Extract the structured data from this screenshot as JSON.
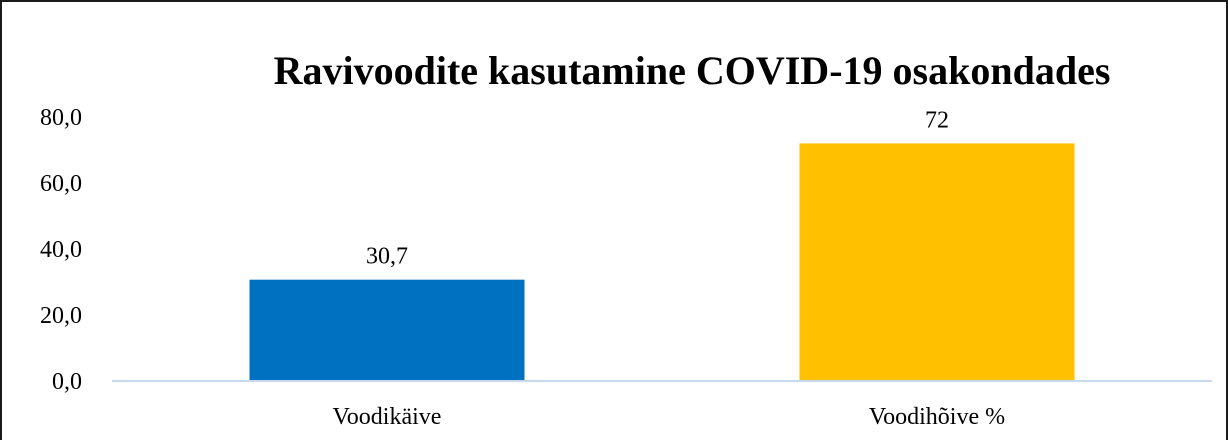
{
  "chart_data": {
    "type": "bar",
    "title": "Ravivoodite kasutamine  COVID-19 osakondades",
    "categories": [
      "Voodikäive",
      "Voodihõive %"
    ],
    "values": [
      30.7,
      72
    ],
    "data_labels": [
      "30,7",
      "72"
    ],
    "bar_colors": [
      "#0070C0",
      "#FFC000"
    ],
    "y_ticks": [
      0,
      20,
      40,
      60,
      80
    ],
    "y_tick_labels": [
      "0,0",
      "20,0",
      "40,0",
      "60,0",
      "80,0"
    ],
    "ylim": [
      0,
      80
    ],
    "xlabel": "",
    "ylabel": "",
    "grid": false,
    "legend": "none",
    "axis_color": "#C6D9F1"
  }
}
